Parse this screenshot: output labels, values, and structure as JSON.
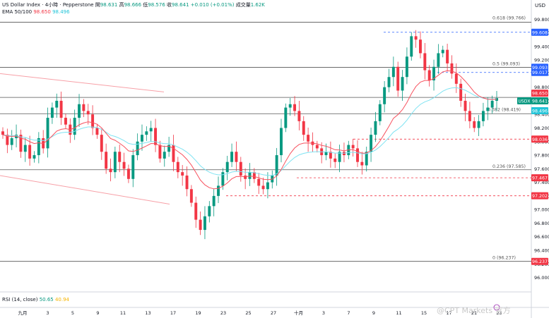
{
  "header": {
    "symbol": "US Dollar Index · 4小時 · Pepperstone",
    "o_label": "開",
    "o": "98.631",
    "h_label": "高",
    "h": "98.666",
    "l_label": "低",
    "l": "98.576",
    "c_label": "收",
    "c": "98.641",
    "change": "+0.010 (+0.01%)",
    "vol_label": "成交量",
    "vol": "1.62K",
    "ema_label": "EMA 50/100",
    "ema50": "98.650",
    "ema100": "98.496"
  },
  "currency": "USD",
  "rsi": {
    "label": "RSI (14, close)",
    "v1": "50.65",
    "v2": "40.94"
  },
  "watermark": "@CPT Markets 官方",
  "colors": {
    "up": "#089981",
    "down": "#f23645",
    "ema50": "#f7525f",
    "ema100": "#7fe3f2",
    "fib": "#7b7b7b",
    "dash_red": "#f23645",
    "dash_blue": "#2962ff",
    "channel": "#f7a0a7"
  },
  "chart_data": {
    "type": "candlestick",
    "ylim": [
      95.85,
      100.0
    ],
    "y_ticks": [
      "99.800",
      "99.600",
      "99.400",
      "99.200",
      "99.000",
      "98.800",
      "98.600",
      "98.400",
      "98.200",
      "98.000",
      "97.800",
      "97.600",
      "97.400",
      "97.200",
      "97.000",
      "96.800",
      "96.600",
      "96.400",
      "96.200",
      "96.000"
    ],
    "x_ticks": [
      "九月",
      "3",
      "5",
      "9",
      "11",
      "13",
      "17",
      "19",
      "23",
      "25",
      "27",
      "十月",
      "3",
      "7",
      "9",
      "11",
      "15",
      "17",
      "21",
      "23"
    ],
    "fib_levels": [
      {
        "label": "0.618 (99.766)",
        "value": 99.766
      },
      {
        "label": "0.5 (99.093)",
        "value": 99.093
      },
      {
        "label": "0.382 (98.419)",
        "value": 98.419
      },
      {
        "label": "0.236 (97.585)",
        "value": 97.585
      },
      {
        "label": "0 (96.237)",
        "value": 96.237
      }
    ],
    "horizontal_lines": [
      99.093,
      98.65,
      98.41,
      97.585,
      96.237
    ],
    "dashed_levels": [
      {
        "value": 99.608,
        "text": "99.608",
        "color": "blue"
      },
      {
        "value": 99.017,
        "text": "99.017",
        "color": "blue"
      },
      {
        "value": 98.036,
        "text": "98.036",
        "color": "red"
      },
      {
        "value": 97.467,
        "text": "97.467",
        "color": "red"
      },
      {
        "value": 97.202,
        "text": "97.202",
        "color": "red"
      }
    ],
    "price_tags": [
      {
        "text": "99.093",
        "value": 99.093,
        "color": "#2962ff"
      },
      {
        "text": "98.650",
        "value": 98.65,
        "color": "#f23645"
      },
      {
        "text": "98.641",
        "value": 98.641,
        "color": "#089981",
        "prefix": "USDX"
      },
      {
        "text": "98.496",
        "value": 98.496,
        "color": "#22c4d8"
      },
      {
        "text": "96.237",
        "value": 96.237,
        "color": "#f23645"
      }
    ],
    "series": [
      {
        "name": "USDX",
        "values": [
          98.1,
          97.95,
          98.05,
          98.1,
          97.85,
          97.95,
          97.75,
          97.8,
          98.05,
          97.9,
          98.35,
          98.5,
          98.6,
          98.35,
          98.25,
          98.1,
          98.35,
          98.55,
          98.45,
          98.4,
          98.2,
          98.1,
          97.85,
          97.6,
          97.55,
          97.85,
          97.7,
          97.6,
          97.45,
          97.8,
          98.0,
          98.1,
          98.15,
          98.2,
          97.95,
          97.75,
          97.85,
          97.95,
          97.7,
          97.55,
          97.5,
          97.3,
          97.1,
          96.85,
          96.7,
          96.9,
          97.05,
          97.2,
          97.35,
          97.55,
          97.7,
          97.85,
          97.7,
          97.5,
          97.45,
          97.55,
          97.45,
          97.35,
          97.3,
          97.4,
          97.5,
          97.8,
          98.2,
          98.5,
          98.55,
          98.45,
          98.3,
          98.1,
          98.0,
          97.95,
          97.9,
          97.8,
          97.85,
          97.75,
          97.7,
          97.85,
          97.8,
          97.95,
          97.9,
          97.7,
          97.65,
          97.85,
          98.1,
          98.3,
          98.55,
          98.8,
          98.95,
          99.1,
          98.75,
          98.95,
          99.25,
          99.55,
          99.5,
          99.3,
          99.05,
          98.9,
          99.1,
          99.3,
          99.35,
          99.15,
          99.0,
          98.85,
          98.6,
          98.45,
          98.3,
          98.2,
          98.3,
          98.45,
          98.5,
          98.6,
          98.64
        ]
      }
    ]
  }
}
